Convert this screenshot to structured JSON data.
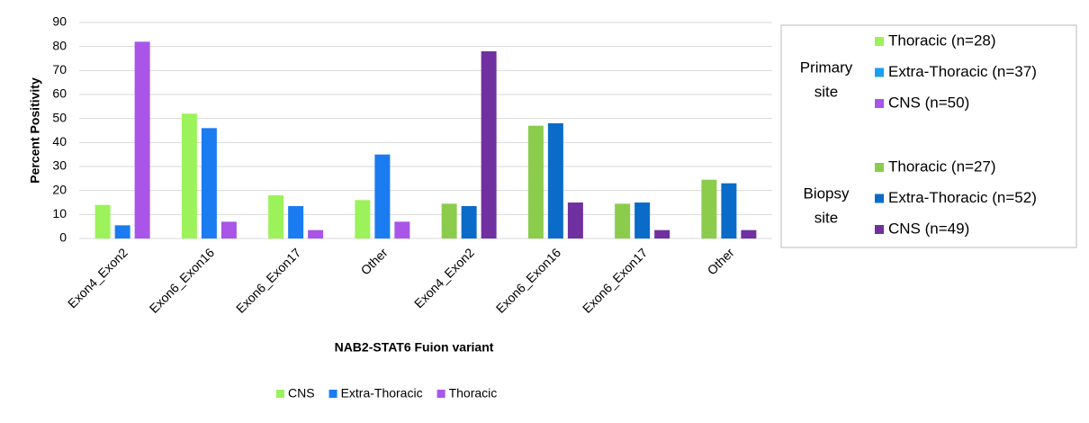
{
  "chart_data": {
    "type": "bar",
    "y_label": "Percent Positivity",
    "x_label": "NAB2-STAT6 Fuion variant",
    "categories": [
      "Exon4_Exon2",
      "Exon6_Exon16",
      "Exon6_Exon17",
      "Other",
      "Exon4_Exon2",
      "Exon6_Exon16",
      "Exon6_Exon17",
      "Other"
    ],
    "series": [
      {
        "name": "CNS",
        "colors": [
          "#9cf25a",
          "#9cf25a",
          "#9cf25a",
          "#9cf25a",
          "#8ccc4c",
          "#8ccc4c",
          "#8ccc4c",
          "#8ccc4c"
        ],
        "values": [
          14,
          52,
          18,
          16,
          14.5,
          47,
          14.5,
          24.5
        ]
      },
      {
        "name": "Extra-Thoracic",
        "colors": [
          "#1a7cf0",
          "#1a7cf0",
          "#1a7cf0",
          "#1a7cf0",
          "#0a6cc8",
          "#0a6cc8",
          "#0a6cc8",
          "#0a6cc8"
        ],
        "values": [
          5.5,
          46,
          13.5,
          35,
          13.5,
          48,
          15,
          23
        ]
      },
      {
        "name": "Thoracic",
        "colors": [
          "#a855e8",
          "#a855e8",
          "#a855e8",
          "#a855e8",
          "#7030a0",
          "#7030a0",
          "#7030a0",
          "#7030a0"
        ],
        "values": [
          82,
          7,
          3.5,
          7,
          78,
          15,
          3.5,
          3.5
        ]
      }
    ],
    "ylim": [
      0,
      90
    ],
    "yticks": [
      0,
      10,
      20,
      30,
      40,
      50,
      60,
      70,
      80,
      90
    ],
    "grid": true,
    "side_legend": [
      {
        "title_lines": [
          "Primary",
          "site"
        ],
        "entries": [
          {
            "label": "Thoracic (n=28)",
            "color": "#9cf25a"
          },
          {
            "label": "Extra-Thoracic (n=37)",
            "color": "#1aa0f0"
          },
          {
            "label": "CNS (n=50)",
            "color": "#a855e8"
          }
        ]
      },
      {
        "title_lines": [
          "Biopsy",
          "site"
        ],
        "entries": [
          {
            "label": "Thoracic (n=27)",
            "color": "#8ccc4c"
          },
          {
            "label": "Extra-Thoracic (n=52)",
            "color": "#0a6cc8"
          },
          {
            "label": "CNS (n=49)",
            "color": "#7030a0"
          }
        ]
      }
    ]
  }
}
